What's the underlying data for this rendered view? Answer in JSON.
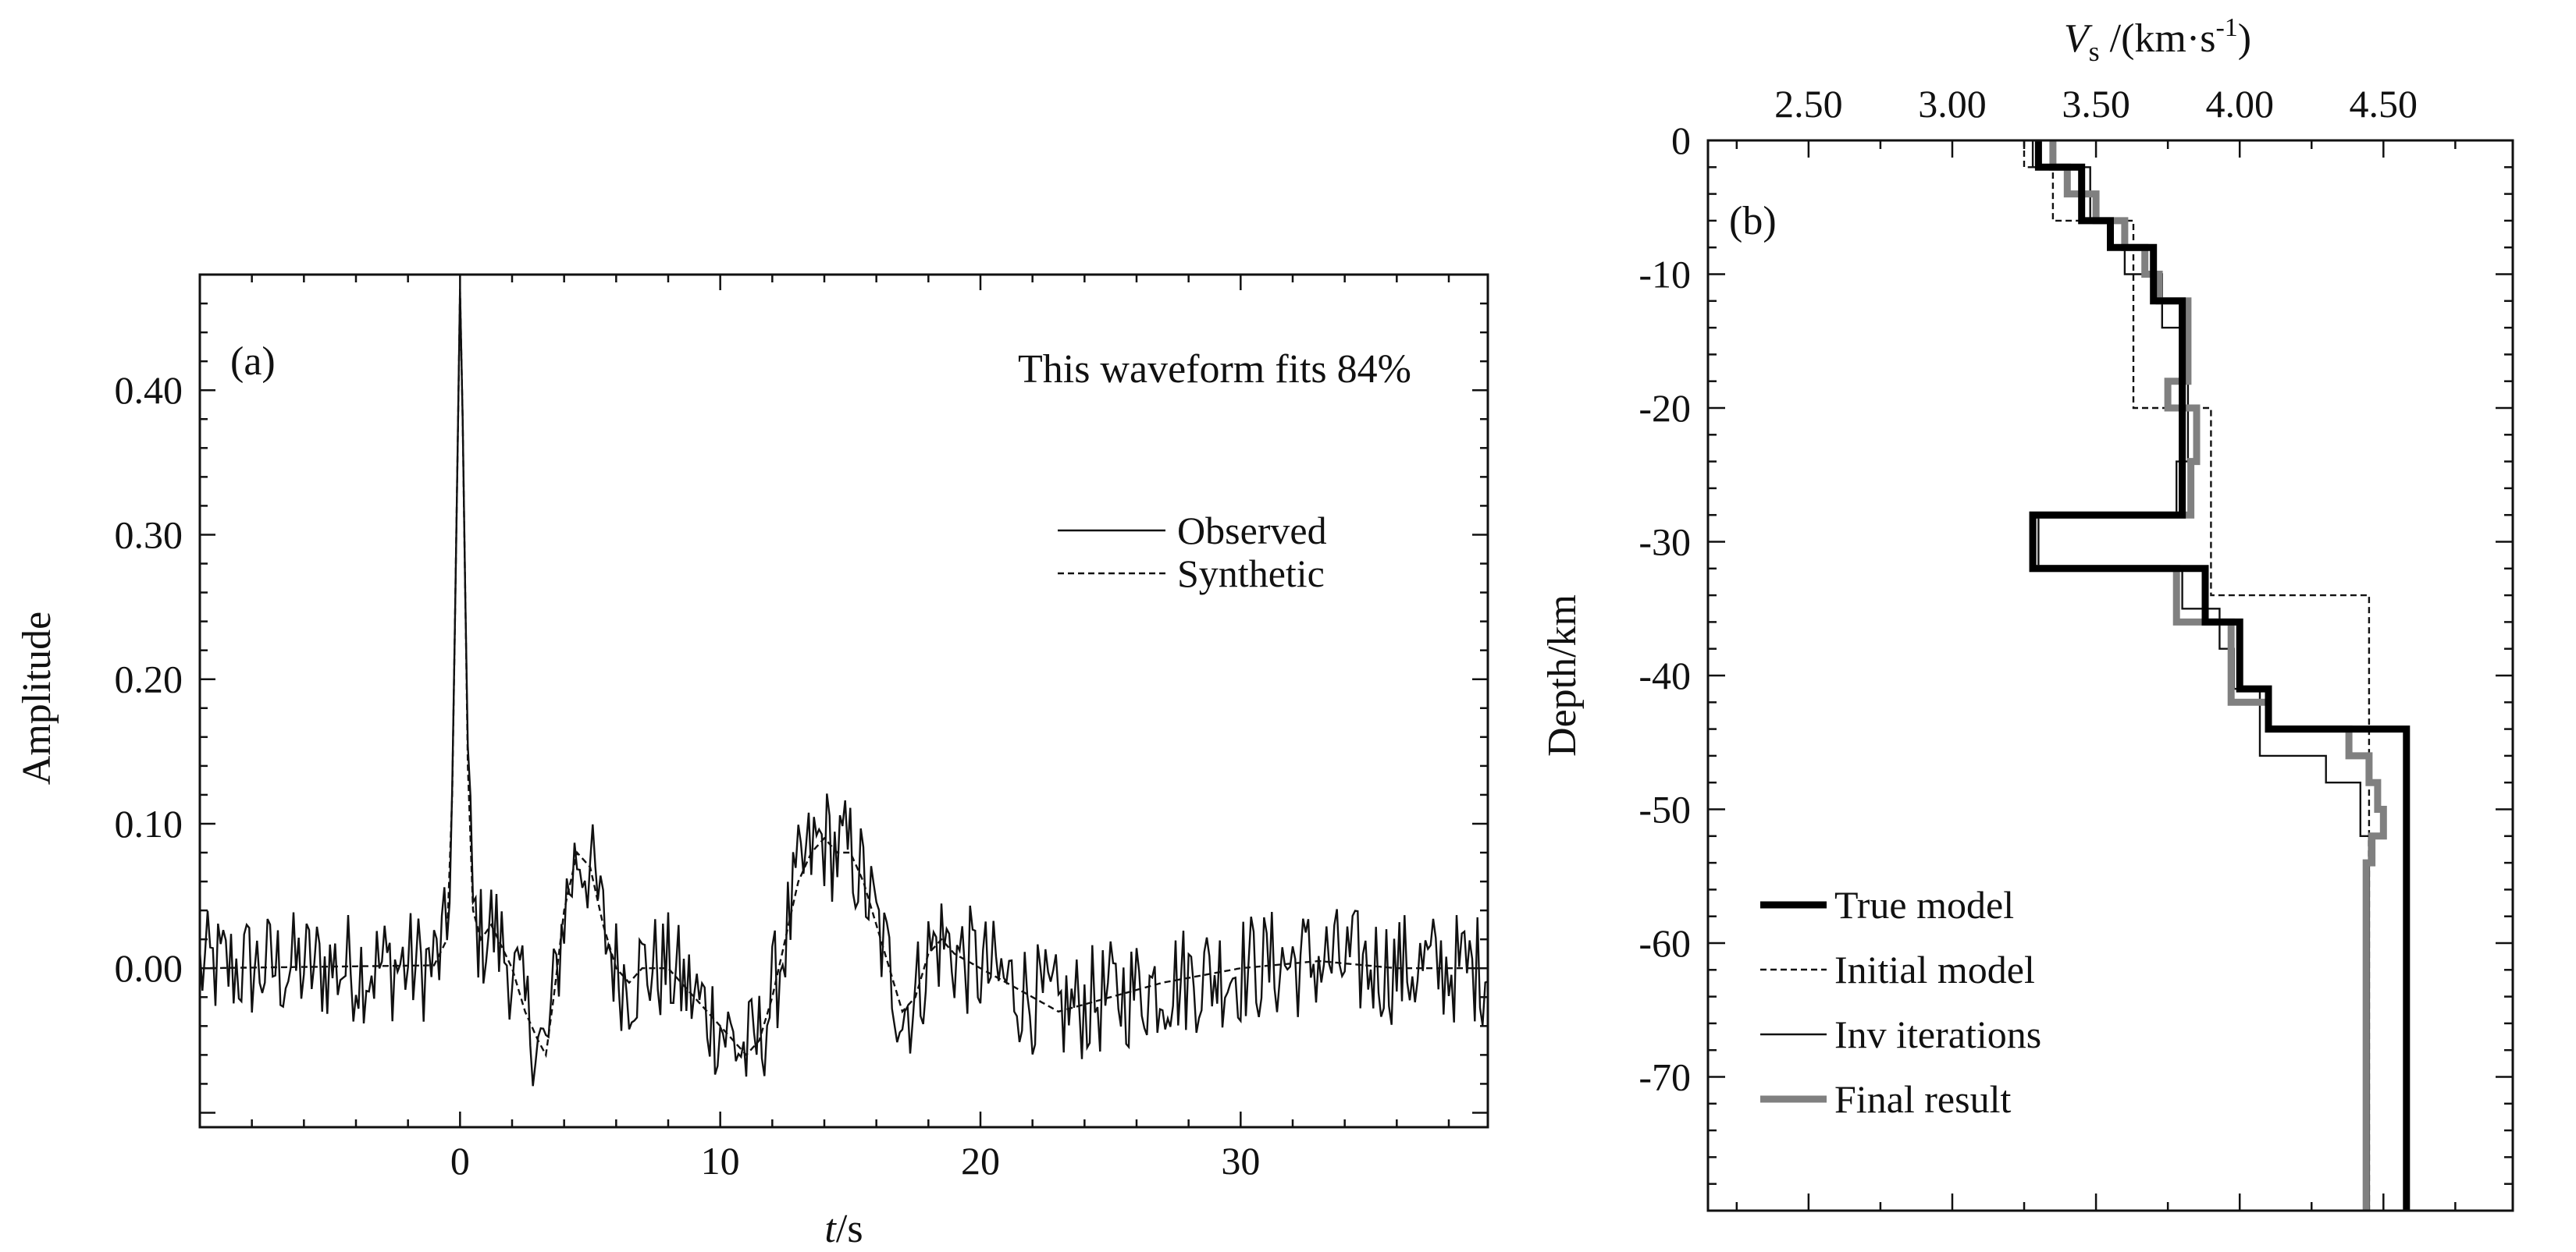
{
  "chart_data": [
    {
      "type": "line",
      "panel_label": "(a)",
      "annotation": "This waveform fits 84%",
      "xlabel_italic": "t",
      "xlabel_unit": "/s",
      "ylabel": "Amplitude",
      "xlim": [
        -10,
        39.5
      ],
      "ylim": [
        -0.11,
        0.48
      ],
      "xticks": [
        0,
        10,
        20,
        30
      ],
      "xtick_labels": [
        "0",
        "10",
        "20",
        "30"
      ],
      "yticks": [
        0.0,
        0.1,
        0.2,
        0.3,
        0.4
      ],
      "ytick_labels": [
        "0.00",
        "0.10",
        "0.20",
        "0.30",
        "0.40"
      ],
      "legend": [
        "Observed",
        "Synthetic"
      ],
      "legend_position": "right",
      "series": [
        {
          "name": "Synthetic",
          "style": "dashed",
          "x": [
            -10,
            -1,
            -0.5,
            -0.3,
            -0.1,
            0,
            0.1,
            0.3,
            0.5,
            0.8,
            1.2,
            2,
            2.5,
            3,
            3.3,
            3.6,
            4,
            4.5,
            5,
            5.5,
            6,
            6.5,
            7,
            8,
            9,
            10,
            10.5,
            11,
            11.5,
            12,
            12.5,
            13,
            13.5,
            14,
            14.5,
            15,
            15.5,
            16,
            16.5,
            17,
            17.5,
            18,
            18.5,
            19,
            20,
            21,
            22,
            23,
            24,
            25,
            27,
            30,
            33,
            36,
            39.5
          ],
          "y": [
            0.0,
            0.002,
            0.02,
            0.12,
            0.35,
            0.47,
            0.38,
            0.14,
            0.04,
            0.02,
            0.03,
            0.0,
            -0.03,
            -0.05,
            -0.06,
            -0.02,
            0.04,
            0.08,
            0.07,
            0.03,
            0.0,
            -0.01,
            0.0,
            0.0,
            -0.02,
            -0.04,
            -0.05,
            -0.06,
            -0.05,
            -0.02,
            0.02,
            0.06,
            0.08,
            0.09,
            0.08,
            0.08,
            0.06,
            0.03,
            0.0,
            -0.03,
            -0.02,
            0.01,
            0.02,
            0.01,
            0.0,
            -0.01,
            -0.02,
            -0.03,
            -0.025,
            -0.02,
            -0.01,
            0.0,
            0.005,
            0.0,
            0.0
          ]
        },
        {
          "name": "Observed",
          "style": "solid",
          "noise_amplitude": 0.04,
          "note": "Observed = Synthetic + random noise; peak 0.48 at t=0"
        }
      ]
    },
    {
      "type": "line",
      "panel_label": "(b)",
      "xlabel_italic": "V",
      "xlabel_sub": "s",
      "xlabel_unit": " /(km·s",
      "xlabel_sup": "-1",
      "xlabel_close": ")",
      "ylabel": "Depth/km",
      "xlim": [
        2.15,
        4.95
      ],
      "ylim": [
        -80,
        0
      ],
      "xticks": [
        2.5,
        3.0,
        3.5,
        4.0,
        4.5
      ],
      "xtick_labels": [
        "2.50",
        "3.00",
        "3.50",
        "4.00",
        "4.50"
      ],
      "yticks": [
        0,
        -10,
        -20,
        -30,
        -40,
        -50,
        -60,
        -70
      ],
      "ytick_labels": [
        "0",
        "-10",
        "-20",
        "-30",
        "-40",
        "-50",
        "-60",
        "-70"
      ],
      "legend": [
        "True model",
        "Initial model",
        "Inv iterations",
        "Final result"
      ],
      "legend_position": "lower-left",
      "series": [
        {
          "name": "True model",
          "style": "thick-black",
          "layers": [
            [
              0,
              2,
              3.3
            ],
            [
              2,
              6,
              3.45
            ],
            [
              6,
              8,
              3.55
            ],
            [
              8,
              12,
              3.7
            ],
            [
              12,
              28,
              3.8
            ],
            [
              28,
              32,
              3.28
            ],
            [
              32,
              36,
              3.88
            ],
            [
              36,
              41,
              4.0
            ],
            [
              41,
              44,
              4.1
            ],
            [
              44,
              80,
              4.58
            ]
          ]
        },
        {
          "name": "Initial model",
          "style": "dashed",
          "layers": [
            [
              0,
              2,
              3.25
            ],
            [
              2,
              6,
              3.35
            ],
            [
              6,
              20,
              3.63
            ],
            [
              20,
              34,
              3.9
            ],
            [
              34,
              80,
              4.45
            ]
          ]
        },
        {
          "name": "Inv iterations",
          "style": "thin-black",
          "layers": [
            [
              0,
              2,
              3.28
            ],
            [
              2,
              6,
              3.48
            ],
            [
              6,
              10,
              3.6
            ],
            [
              10,
              14,
              3.73
            ],
            [
              14,
              24,
              3.82
            ],
            [
              24,
              28,
              3.78
            ],
            [
              28,
              32,
              3.3
            ],
            [
              32,
              35,
              3.8
            ],
            [
              35,
              38,
              3.93
            ],
            [
              38,
              41,
              3.98
            ],
            [
              41,
              46,
              4.07
            ],
            [
              46,
              48,
              4.3
            ],
            [
              48,
              52,
              4.42
            ],
            [
              52,
              80,
              4.45
            ]
          ]
        },
        {
          "name": "Final result",
          "style": "thick-gray",
          "layers": [
            [
              0,
              2,
              3.35
            ],
            [
              2,
              4,
              3.4
            ],
            [
              4,
              6,
              3.5
            ],
            [
              6,
              8,
              3.6
            ],
            [
              8,
              10,
              3.67
            ],
            [
              10,
              12,
              3.72
            ],
            [
              12,
              18,
              3.82
            ],
            [
              18,
              20,
              3.75
            ],
            [
              20,
              24,
              3.85
            ],
            [
              24,
              28,
              3.83
            ],
            [
              28,
              32,
              3.28
            ],
            [
              32,
              36,
              3.78
            ],
            [
              36,
              42,
              3.97
            ],
            [
              42,
              44,
              4.1
            ],
            [
              44,
              46,
              4.38
            ],
            [
              46,
              48,
              4.45
            ],
            [
              48,
              50,
              4.48
            ],
            [
              50,
              52,
              4.5
            ],
            [
              52,
              54,
              4.46
            ],
            [
              54,
              80,
              4.44
            ]
          ]
        }
      ]
    }
  ]
}
